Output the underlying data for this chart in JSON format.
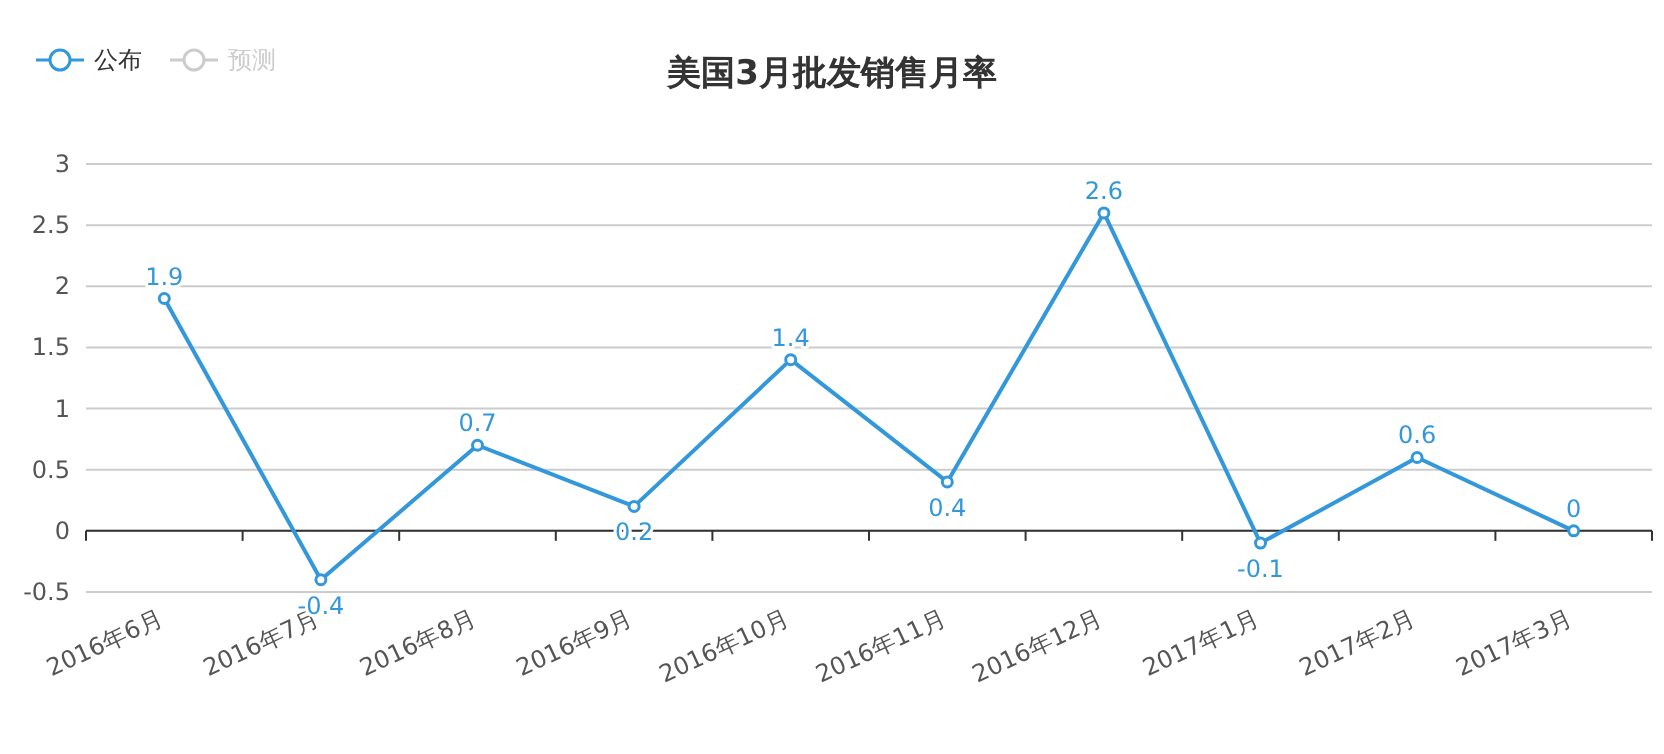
{
  "chart_data": {
    "type": "line",
    "title": "美国3月批发销售月率",
    "categories": [
      "2016年6月",
      "2016年7月",
      "2016年8月",
      "2016年9月",
      "2016年10月",
      "2016年11月",
      "2016年12月",
      "2017年1月",
      "2017年2月",
      "2017年3月"
    ],
    "series": [
      {
        "name": "公布",
        "color": "#3398db",
        "values": [
          1.9,
          -0.4,
          0.7,
          0.2,
          1.4,
          0.4,
          2.6,
          -0.1,
          0.6,
          0
        ]
      },
      {
        "name": "预测",
        "color": "#cccccc",
        "values": [
          null,
          null,
          null,
          null,
          null,
          null,
          null,
          null,
          null,
          null
        ]
      }
    ],
    "ylim": [
      -0.5,
      3
    ],
    "yticks": [
      -0.5,
      0,
      0.5,
      1,
      1.5,
      2,
      2.5,
      3
    ],
    "grid": "y",
    "legend": "top left",
    "marker": "circle",
    "data_labels": true
  }
}
